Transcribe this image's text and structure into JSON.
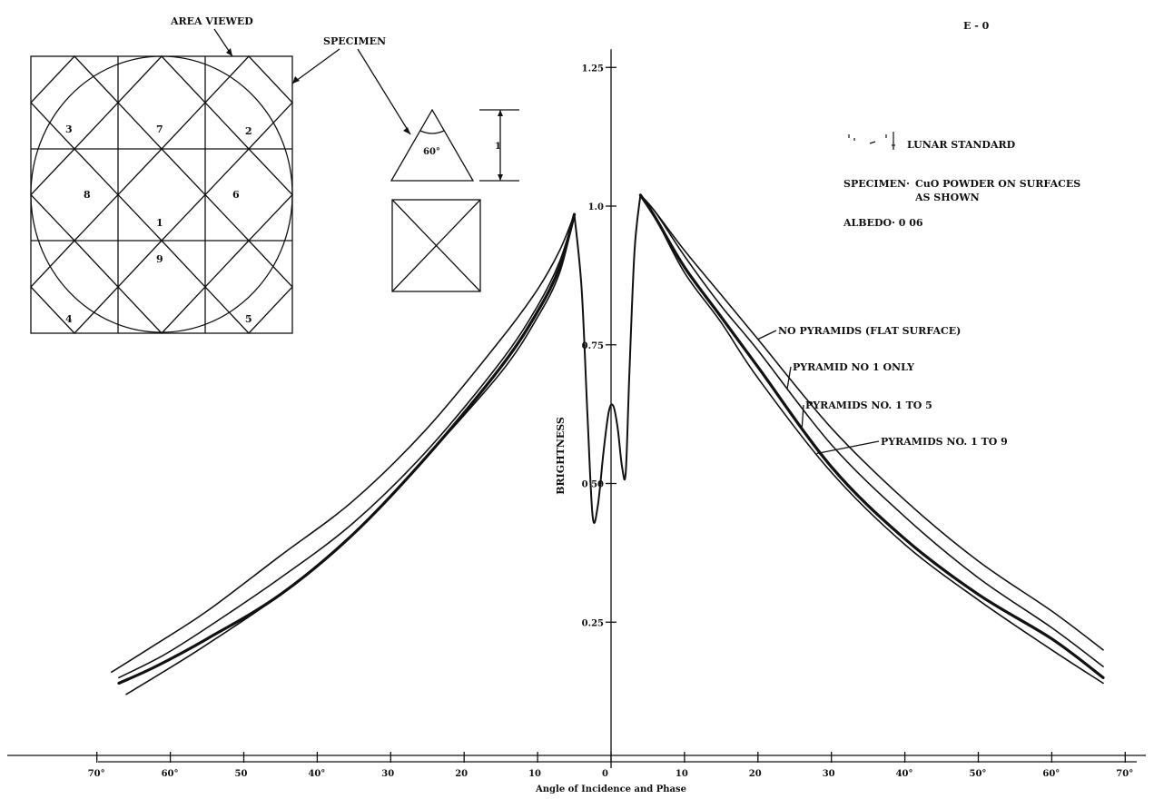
{
  "figure": {
    "code": "E - 0",
    "inset_labels": {
      "area_viewed": "AREA VIEWED",
      "specimen": "SPECIMEN",
      "angle": "60°",
      "height": "1",
      "cells": [
        {
          "id": "3"
        },
        {
          "id": "7"
        },
        {
          "id": "2"
        },
        {
          "id": "8"
        },
        {
          "id": "6"
        },
        {
          "id": "1"
        },
        {
          "id": "9"
        },
        {
          "id": "4"
        },
        {
          "id": "5"
        }
      ]
    },
    "legend": {
      "standard": "LUNAR STANDARD",
      "specimen_label": "SPECIMEN·",
      "specimen_line1": "CuO POWDER ON SURFACES",
      "specimen_line2": "AS SHOWN",
      "albedo": "ALBEDO· 0 06"
    }
  },
  "chart_data": {
    "type": "line",
    "title": "",
    "xlabel": "Angle of Incidence and Phase",
    "ylabel": "BRIGHTNESS",
    "xlim": [
      -70,
      70
    ],
    "ylim": [
      0,
      1.25
    ],
    "x_ticks": [
      {
        "value": -70,
        "label": "70°"
      },
      {
        "value": -60,
        "label": "60°"
      },
      {
        "value": -50,
        "label": "50"
      },
      {
        "value": -40,
        "label": "40°"
      },
      {
        "value": -30,
        "label": "30"
      },
      {
        "value": -20,
        "label": "20"
      },
      {
        "value": -10,
        "label": "10"
      },
      {
        "value": 0,
        "label": "0"
      },
      {
        "value": 10,
        "label": "10"
      },
      {
        "value": 20,
        "label": "20"
      },
      {
        "value": 30,
        "label": "30"
      },
      {
        "value": 40,
        "label": "40°"
      },
      {
        "value": 50,
        "label": "50°"
      },
      {
        "value": 60,
        "label": "60°"
      },
      {
        "value": 70,
        "label": "70°"
      }
    ],
    "y_ticks": [
      {
        "value": 0.25,
        "label": "0.25"
      },
      {
        "value": 0.5,
        "label": "0 50"
      },
      {
        "value": 0.75,
        "label": "0.75"
      },
      {
        "value": 1.0,
        "label": "1.0"
      },
      {
        "value": 1.25,
        "label": "1.25"
      }
    ],
    "series": [
      {
        "name": "NO PYRAMIDS (FLAT SURFACE)",
        "label_side": "right",
        "left": [
          [
            -68,
            0.16
          ],
          [
            -62,
            0.21
          ],
          [
            -55,
            0.27
          ],
          [
            -45,
            0.37
          ],
          [
            -35,
            0.47
          ],
          [
            -25,
            0.6
          ],
          [
            -15,
            0.76
          ],
          [
            -10,
            0.85
          ],
          [
            -7,
            0.92
          ],
          [
            -5,
            0.985
          ]
        ],
        "right": [
          [
            4,
            1.02
          ],
          [
            6,
            0.99
          ],
          [
            10,
            0.92
          ],
          [
            15,
            0.84
          ],
          [
            20,
            0.76
          ],
          [
            30,
            0.6
          ],
          [
            40,
            0.47
          ],
          [
            50,
            0.36
          ],
          [
            60,
            0.27
          ],
          [
            67,
            0.2
          ]
        ]
      },
      {
        "name": "PYRAMID NO 1 ONLY",
        "label_side": "right",
        "left": [
          [
            -67,
            0.15
          ],
          [
            -61,
            0.19
          ],
          [
            -55,
            0.24
          ],
          [
            -45,
            0.33
          ],
          [
            -35,
            0.43
          ],
          [
            -25,
            0.56
          ],
          [
            -15,
            0.72
          ],
          [
            -10,
            0.82
          ],
          [
            -7,
            0.9
          ],
          [
            -5,
            0.985
          ]
        ],
        "right": [
          [
            4,
            1.02
          ],
          [
            6,
            0.99
          ],
          [
            10,
            0.91
          ],
          [
            15,
            0.82
          ],
          [
            20,
            0.74
          ],
          [
            30,
            0.57
          ],
          [
            40,
            0.44
          ],
          [
            50,
            0.33
          ],
          [
            60,
            0.24
          ],
          [
            67,
            0.17
          ]
        ]
      },
      {
        "name": "PYRAMIDS NO. 1 TO 5",
        "label_side": "right",
        "bold": true,
        "left": [
          [
            -67,
            0.14
          ],
          [
            -62,
            0.17
          ],
          [
            -55,
            0.22
          ],
          [
            -45,
            0.3
          ],
          [
            -35,
            0.41
          ],
          [
            -25,
            0.55
          ],
          [
            -15,
            0.71
          ],
          [
            -10,
            0.81
          ],
          [
            -7,
            0.89
          ],
          [
            -5,
            0.985
          ]
        ],
        "right": [
          [
            4,
            1.02
          ],
          [
            6,
            0.98
          ],
          [
            10,
            0.89
          ],
          [
            15,
            0.8
          ],
          [
            20,
            0.71
          ],
          [
            30,
            0.53
          ],
          [
            40,
            0.4
          ],
          [
            50,
            0.3
          ],
          [
            60,
            0.22
          ],
          [
            67,
            0.15
          ]
        ]
      },
      {
        "name": "PYRAMIDS NO. 1 TO 9",
        "label_side": "right",
        "left": [
          [
            -66,
            0.12
          ],
          [
            -61,
            0.16
          ],
          [
            -55,
            0.21
          ],
          [
            -45,
            0.3
          ],
          [
            -35,
            0.41
          ],
          [
            -25,
            0.55
          ],
          [
            -15,
            0.7
          ],
          [
            -10,
            0.8
          ],
          [
            -7,
            0.88
          ],
          [
            -5,
            0.985
          ]
        ],
        "right": [
          [
            4,
            1.02
          ],
          [
            6,
            0.98
          ],
          [
            10,
            0.88
          ],
          [
            15,
            0.79
          ],
          [
            20,
            0.69
          ],
          [
            30,
            0.52
          ],
          [
            40,
            0.39
          ],
          [
            50,
            0.29
          ],
          [
            60,
            0.2
          ],
          [
            67,
            0.14
          ]
        ]
      }
    ],
    "opposition_peak": [
      [
        -5,
        0.985
      ],
      [
        -4,
        0.85
      ],
      [
        -3.2,
        0.62
      ],
      [
        -2.5,
        0.44
      ],
      [
        -1.8,
        0.46
      ],
      [
        -1.0,
        0.56
      ],
      [
        -0.3,
        0.63
      ],
      [
        0.3,
        0.64
      ],
      [
        0.9,
        0.6
      ],
      [
        1.5,
        0.53
      ],
      [
        2,
        0.52
      ],
      [
        2.5,
        0.7
      ],
      [
        3.2,
        0.92
      ],
      [
        4,
        1.02
      ]
    ],
    "grid": false,
    "legend_placement": "right"
  }
}
